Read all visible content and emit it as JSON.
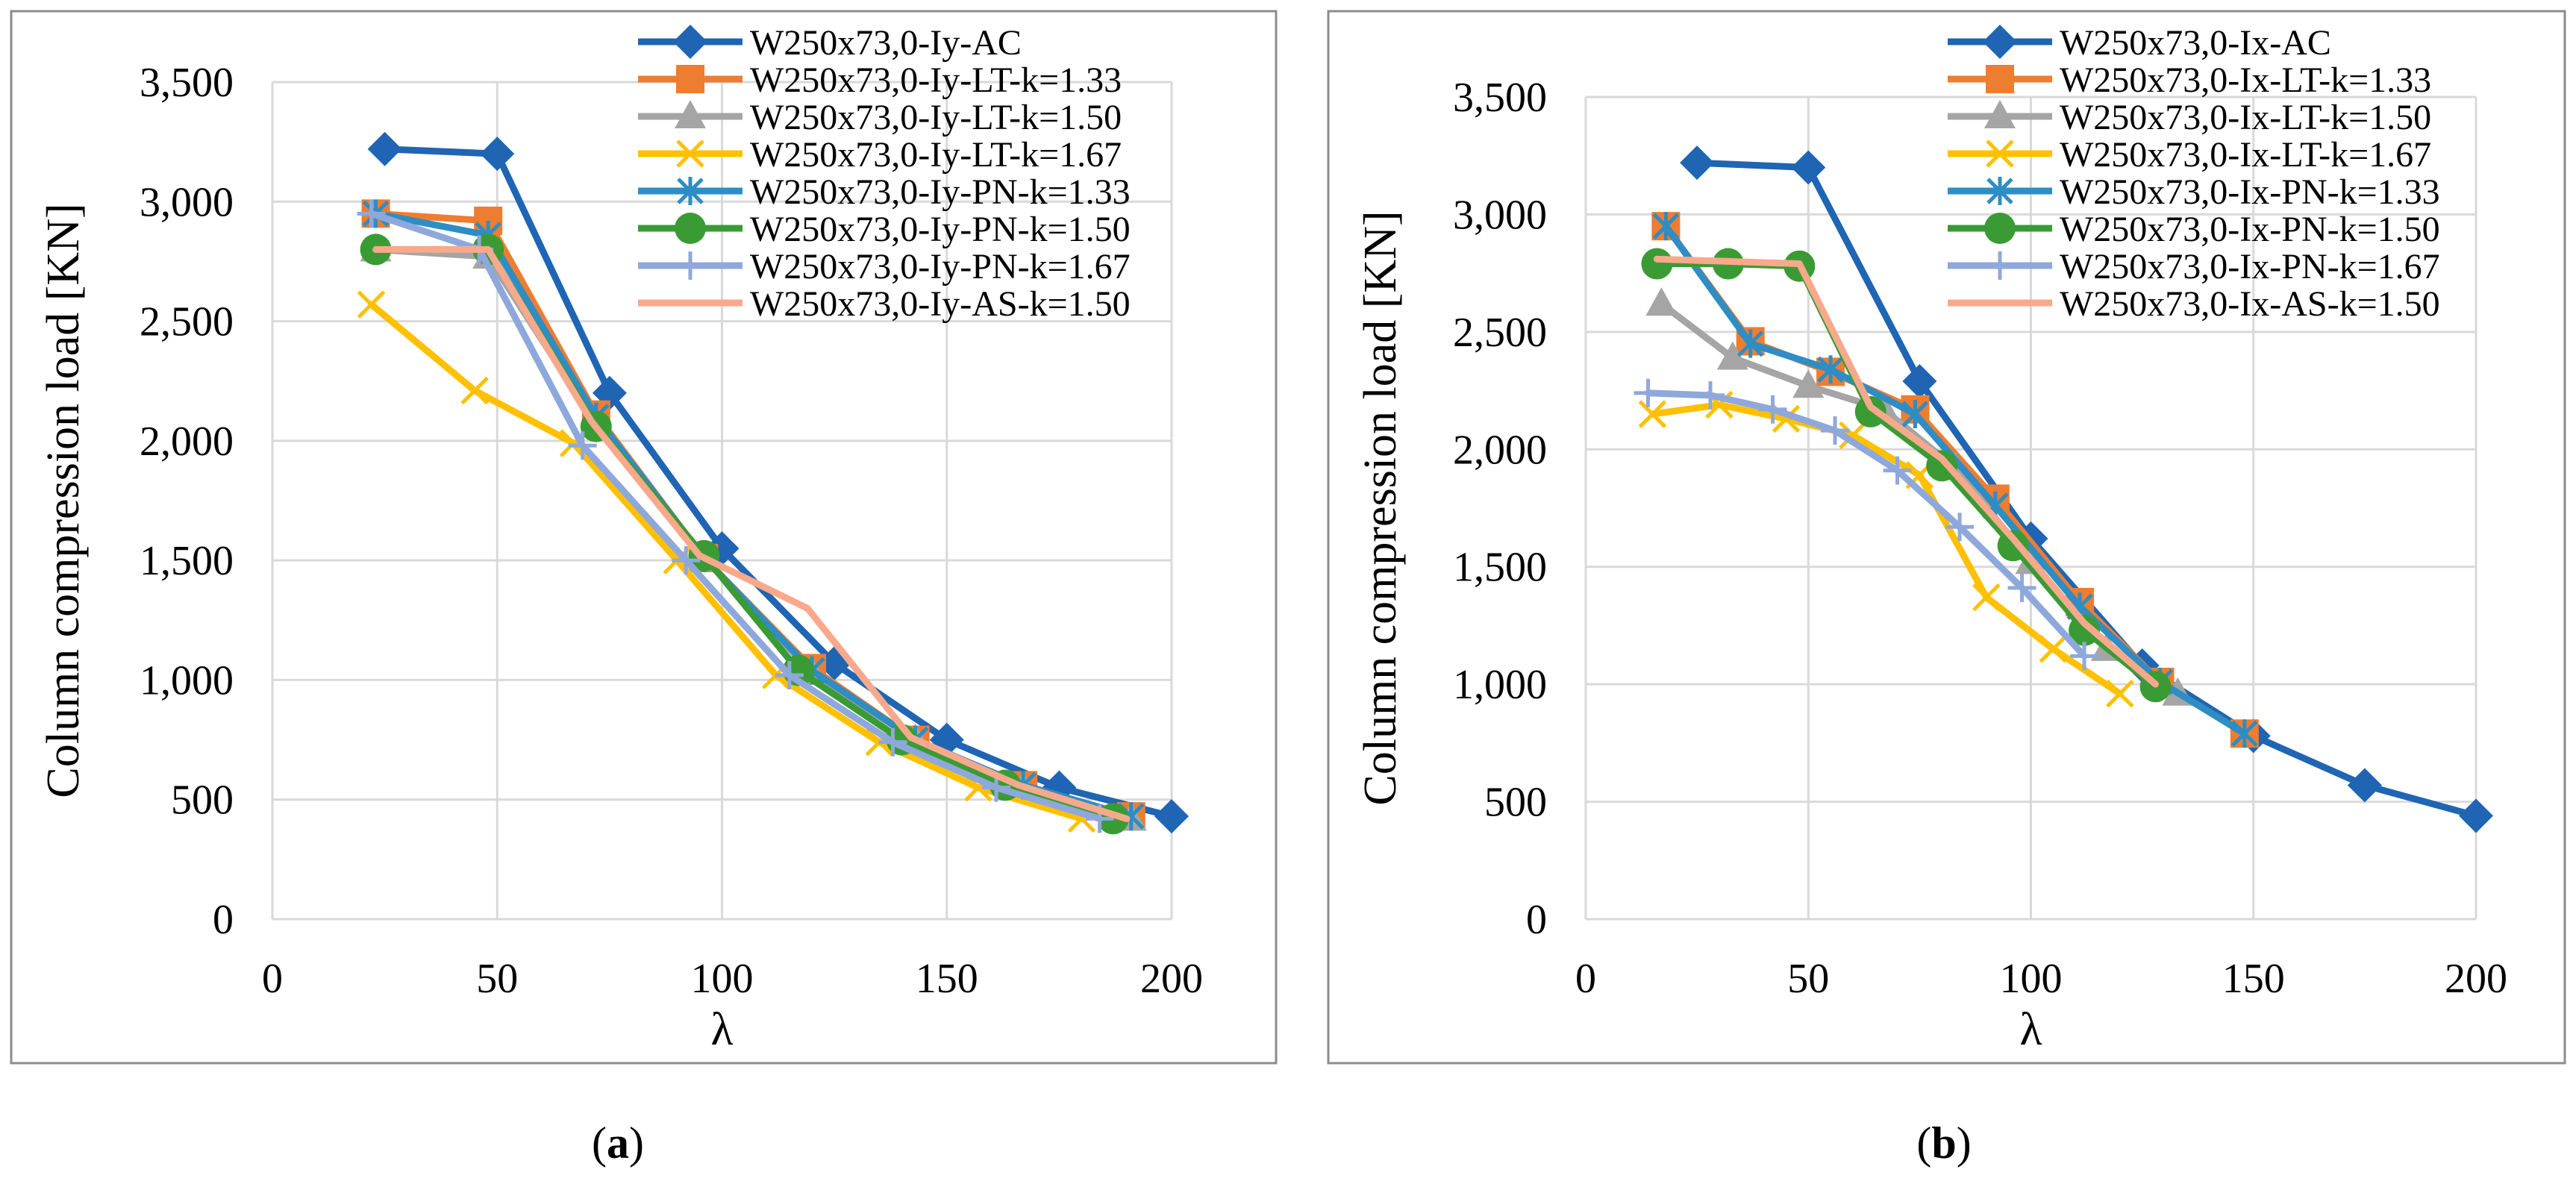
{
  "figure": {
    "panel_labels": [
      "a",
      "b"
    ]
  },
  "colors": {
    "AC": "#1F65B3",
    "LT133": "#ED7D31",
    "LT150": "#A5A5A5",
    "LT167": "#FFC000",
    "PN133": "#2E8DC4",
    "PN150": "#3A9B34",
    "PN167": "#8FA8DC",
    "AS150": "#F8A98C",
    "grid": "#D9D9D9",
    "frame": "#8C8C8C"
  },
  "chart_data": [
    {
      "type": "line",
      "panel": "a",
      "xlabel": "λ",
      "ylabel": "Column compression load [KN]",
      "xlim": [
        0,
        200
      ],
      "ylim": [
        0,
        3500
      ],
      "xticks": [
        "0",
        "50",
        "100",
        "150",
        "200"
      ],
      "yticks": [
        "0",
        "500",
        "1,000",
        "1,500",
        "2,000",
        "2,500",
        "3,000",
        "3,500"
      ],
      "legend_position": "top-right",
      "series": [
        {
          "name": "W250x73,0-Iy-AC",
          "color_key": "AC",
          "marker": "diamond",
          "x": [
            25,
            50,
            75,
            100,
            125,
            150,
            175,
            200
          ],
          "y": [
            3220,
            3200,
            2200,
            1550,
            1070,
            750,
            550,
            430
          ]
        },
        {
          "name": "W250x73,0-Iy-LT-k=1.33",
          "color_key": "LT133",
          "marker": "square",
          "x": [
            23,
            48,
            72,
            96,
            120,
            143,
            167,
            191
          ],
          "y": [
            2950,
            2920,
            2110,
            1510,
            1050,
            750,
            560,
            430
          ]
        },
        {
          "name": "W250x73,0-Iy-LT-k=1.50",
          "color_key": "LT150",
          "marker": "triangle",
          "x": [
            23,
            48,
            72,
            96,
            120,
            143,
            167,
            191
          ],
          "y": [
            2800,
            2770,
            2070,
            1510,
            1030,
            750,
            550,
            420
          ]
        },
        {
          "name": "W250x73,0-Iy-LT-k=1.67",
          "color_key": "LT167",
          "marker": "x",
          "x": [
            22,
            45,
            67,
            90,
            112,
            135,
            157,
            180
          ],
          "y": [
            2570,
            2210,
            1990,
            1500,
            1020,
            740,
            550,
            420
          ]
        },
        {
          "name": "W250x73,0-Iy-PN-k=1.33",
          "color_key": "PN133",
          "marker": "asterisk",
          "x": [
            23,
            48,
            72,
            96,
            120,
            143,
            167,
            191
          ],
          "y": [
            2950,
            2860,
            2100,
            1510,
            1040,
            750,
            560,
            430
          ]
        },
        {
          "name": "W250x73,0-Iy-PN-k=1.50",
          "color_key": "PN150",
          "marker": "circle",
          "x": [
            23,
            48,
            72,
            96,
            117,
            140,
            163,
            187
          ],
          "y": [
            2800,
            2800,
            2060,
            1520,
            1040,
            750,
            560,
            420
          ]
        },
        {
          "name": "W250x73,0-Iy-PN-k=1.67",
          "color_key": "PN167",
          "marker": "plus",
          "x": [
            22,
            46,
            69,
            92,
            115,
            138,
            161,
            184
          ],
          "y": [
            2950,
            2800,
            1980,
            1500,
            1020,
            740,
            550,
            420
          ]
        },
        {
          "name": "W250x73,0-Iy-AS-k=1.50",
          "color_key": "AS150",
          "marker": "none",
          "x": [
            23,
            48,
            71,
            95,
            119,
            142,
            166,
            190
          ],
          "y": [
            2800,
            2800,
            2080,
            1520,
            1300,
            760,
            560,
            420
          ]
        }
      ]
    },
    {
      "type": "line",
      "panel": "b",
      "xlabel": "λ",
      "ylabel": "Column compression load [KN]",
      "xlim": [
        0,
        200
      ],
      "ylim": [
        0,
        3500
      ],
      "xticks": [
        "0",
        "50",
        "100",
        "150",
        "200"
      ],
      "yticks": [
        "0",
        "500",
        "1,000",
        "1,500",
        "2,000",
        "2,500",
        "3,000",
        "3,500"
      ],
      "legend_position": "top-right",
      "series": [
        {
          "name": "W250x73,0-Ix-AC",
          "color_key": "AC",
          "marker": "diamond",
          "x": [
            25,
            50,
            75,
            100,
            125,
            150,
            175,
            200
          ],
          "y": [
            3220,
            3200,
            2290,
            1620,
            1080,
            780,
            570,
            440
          ]
        },
        {
          "name": "W250x73,0-Ix-LT-k=1.33",
          "color_key": "LT133",
          "marker": "square",
          "x": [
            18,
            37,
            55,
            74,
            92,
            111,
            129,
            148
          ],
          "y": [
            2950,
            2460,
            2330,
            2170,
            1790,
            1350,
            1010,
            790
          ]
        },
        {
          "name": "W250x73,0-Ix-LT-k=1.50",
          "color_key": "LT150",
          "marker": "triangle",
          "x": [
            17,
            33,
            50,
            67,
            83,
            100,
            117,
            133
          ],
          "y": [
            2620,
            2390,
            2270,
            2170,
            1920,
            1520,
            1150,
            960
          ]
        },
        {
          "name": "W250x73,0-Ix-LT-k=1.67",
          "color_key": "LT167",
          "marker": "x",
          "x": [
            15,
            30,
            45,
            60,
            75,
            90,
            105,
            120
          ],
          "y": [
            2150,
            2190,
            2130,
            2060,
            1890,
            1370,
            1150,
            960
          ]
        },
        {
          "name": "W250x73,0-Ix-PN-k=1.33",
          "color_key": "PN133",
          "marker": "asterisk",
          "x": [
            18,
            37,
            55,
            74,
            92,
            111,
            129,
            148
          ],
          "y": [
            2950,
            2450,
            2340,
            2150,
            1760,
            1330,
            1010,
            790
          ]
        },
        {
          "name": "W250x73,0-Ix-PN-k=1.50",
          "color_key": "PN150",
          "marker": "circle",
          "x": [
            16,
            32,
            48,
            64,
            80,
            96,
            112,
            128
          ],
          "y": [
            2790,
            2790,
            2780,
            2160,
            1930,
            1590,
            1230,
            990
          ]
        },
        {
          "name": "W250x73,0-Ix-PN-k=1.67",
          "color_key": "PN167",
          "marker": "plus",
          "x": [
            14,
            28,
            42,
            56,
            70,
            84,
            98,
            112
          ],
          "y": [
            2240,
            2230,
            2170,
            2080,
            1910,
            1670,
            1410,
            1120
          ]
        },
        {
          "name": "W250x73,0-Ix-AS-k=1.50",
          "color_key": "AS150",
          "marker": "none",
          "x": [
            16,
            32,
            48,
            64,
            80,
            96,
            112,
            128
          ],
          "y": [
            2810,
            2800,
            2790,
            2180,
            1960,
            1620,
            1260,
            1000
          ]
        }
      ]
    }
  ]
}
